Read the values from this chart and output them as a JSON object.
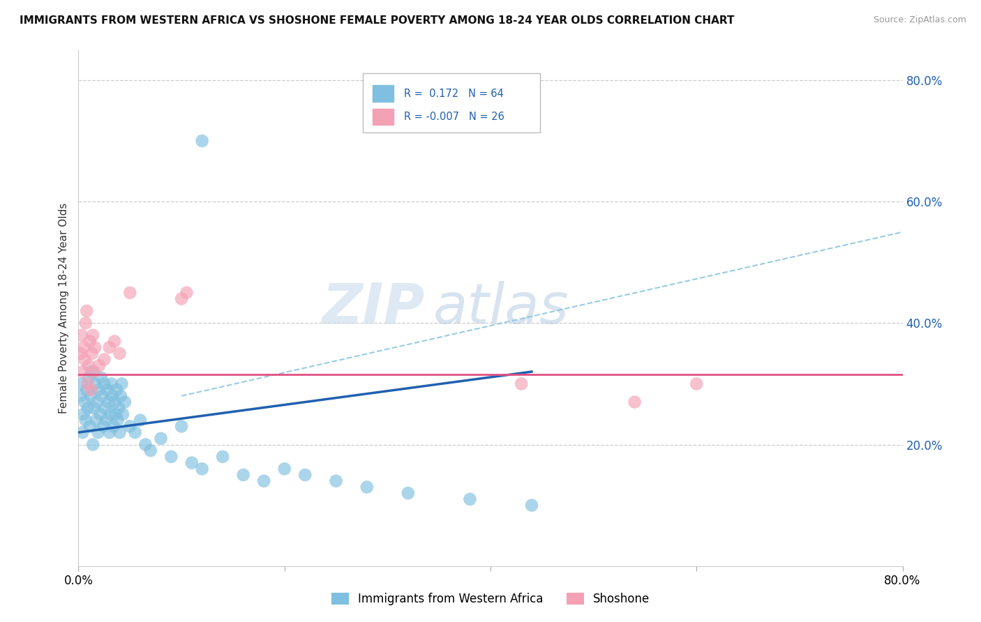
{
  "title": "IMMIGRANTS FROM WESTERN AFRICA VS SHOSHONE FEMALE POVERTY AMONG 18-24 YEAR OLDS CORRELATION CHART",
  "source": "Source: ZipAtlas.com",
  "ylabel": "Female Poverty Among 18-24 Year Olds",
  "xlim": [
    0.0,
    0.8
  ],
  "ylim": [
    0.0,
    0.85
  ],
  "yticks_right": [
    0.2,
    0.4,
    0.6,
    0.8
  ],
  "ytick_labels_right": [
    "20.0%",
    "40.0%",
    "60.0%",
    "80.0%"
  ],
  "grid_color": "#cccccc",
  "background_color": "#ffffff",
  "blue_color": "#7fbfdf",
  "pink_color": "#f4a0b5",
  "blue_line_color": "#2060b0",
  "pink_line_color": "#e05080",
  "dashed_line_color": "#7fbfdf",
  "blue_scatter_x": [
    0.002,
    0.003,
    0.004,
    0.005,
    0.006,
    0.007,
    0.008,
    0.009,
    0.01,
    0.011,
    0.012,
    0.013,
    0.014,
    0.015,
    0.016,
    0.017,
    0.018,
    0.019,
    0.02,
    0.021,
    0.022,
    0.023,
    0.024,
    0.025,
    0.026,
    0.027,
    0.028,
    0.029,
    0.03,
    0.031,
    0.032,
    0.033,
    0.034,
    0.035,
    0.036,
    0.037,
    0.038,
    0.039,
    0.04,
    0.041,
    0.042,
    0.043,
    0.045,
    0.05,
    0.055,
    0.06,
    0.065,
    0.07,
    0.08,
    0.09,
    0.1,
    0.11,
    0.12,
    0.14,
    0.16,
    0.18,
    0.2,
    0.22,
    0.25,
    0.28,
    0.32,
    0.38,
    0.44,
    0.12
  ],
  "blue_scatter_y": [
    0.28,
    0.3,
    0.22,
    0.25,
    0.27,
    0.24,
    0.29,
    0.26,
    0.31,
    0.23,
    0.28,
    0.32,
    0.2,
    0.26,
    0.3,
    0.24,
    0.27,
    0.22,
    0.29,
    0.25,
    0.31,
    0.28,
    0.23,
    0.3,
    0.26,
    0.24,
    0.29,
    0.27,
    0.22,
    0.25,
    0.3,
    0.28,
    0.23,
    0.27,
    0.25,
    0.29,
    0.24,
    0.26,
    0.22,
    0.28,
    0.3,
    0.25,
    0.27,
    0.23,
    0.22,
    0.24,
    0.2,
    0.19,
    0.21,
    0.18,
    0.23,
    0.17,
    0.16,
    0.18,
    0.15,
    0.14,
    0.16,
    0.15,
    0.14,
    0.13,
    0.12,
    0.11,
    0.1,
    0.7
  ],
  "pink_scatter_x": [
    0.002,
    0.003,
    0.004,
    0.005,
    0.006,
    0.007,
    0.008,
    0.009,
    0.01,
    0.011,
    0.012,
    0.013,
    0.014,
    0.015,
    0.016,
    0.02,
    0.025,
    0.03,
    0.035,
    0.04,
    0.05,
    0.1,
    0.105,
    0.43,
    0.54,
    0.6
  ],
  "pink_scatter_y": [
    0.35,
    0.38,
    0.32,
    0.36,
    0.34,
    0.4,
    0.42,
    0.3,
    0.33,
    0.37,
    0.29,
    0.35,
    0.38,
    0.32,
    0.36,
    0.33,
    0.34,
    0.36,
    0.37,
    0.35,
    0.45,
    0.44,
    0.45,
    0.3,
    0.27,
    0.3
  ],
  "blue_line_x0": 0.0,
  "blue_line_y0": 0.22,
  "blue_line_x1": 0.44,
  "blue_line_y1": 0.32,
  "dashed_line_x0": 0.1,
  "dashed_line_y0": 0.28,
  "dashed_line_x1": 0.8,
  "dashed_line_y1": 0.55,
  "pink_line_x0": 0.0,
  "pink_line_y0": 0.315,
  "pink_line_x1": 0.8,
  "pink_line_y1": 0.315
}
